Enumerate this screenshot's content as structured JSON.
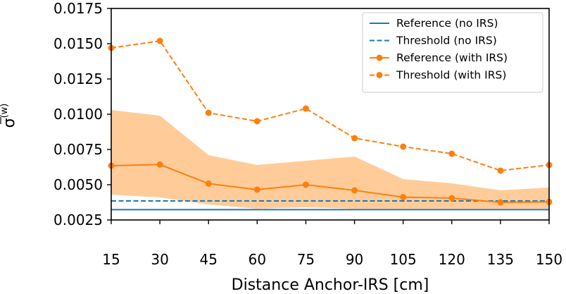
{
  "chart_data": {
    "type": "line",
    "title": "",
    "xlabel": "Distance Anchor-IRS [cm]",
    "ylabel": "σ̄(w)",
    "ylabel_main": "σ",
    "ylabel_sup": "(w)",
    "xlim": [
      15,
      150
    ],
    "ylim": [
      0.0025,
      0.0175
    ],
    "x": [
      15,
      30,
      45,
      60,
      75,
      90,
      105,
      120,
      135,
      150
    ],
    "x_tick_labels": [
      "15",
      "30",
      "45",
      "60",
      "75",
      "90",
      "105",
      "120",
      "135",
      "150"
    ],
    "y_ticks": [
      0.0025,
      0.005,
      0.0075,
      0.01,
      0.0125,
      0.015,
      0.0175
    ],
    "y_tick_labels": [
      "0.0025",
      "0.0050",
      "0.0075",
      "0.0100",
      "0.0125",
      "0.0150",
      "0.0175"
    ],
    "legend_position": "top-right",
    "series": [
      {
        "name": "Reference (no IRS)",
        "color": "#1f77b4",
        "dash": "solid",
        "marker": false,
        "values": [
          0.00323,
          0.00323,
          0.00323,
          0.00323,
          0.00323,
          0.00323,
          0.00323,
          0.00323,
          0.00323,
          0.00323
        ]
      },
      {
        "name": "Threshold (no IRS)",
        "color": "#1f77b4",
        "dash": "dashed",
        "marker": false,
        "values": [
          0.00385,
          0.00385,
          0.00385,
          0.00385,
          0.00385,
          0.00385,
          0.00385,
          0.00385,
          0.00385,
          0.00385
        ]
      },
      {
        "name": "Reference (with IRS)",
        "color": "#ff7f0e",
        "dash": "solid",
        "marker": true,
        "values": [
          0.00635,
          0.00643,
          0.00508,
          0.00465,
          0.005,
          0.0046,
          0.00412,
          0.00405,
          0.00375,
          0.00378
        ]
      },
      {
        "name": "Threshold (with IRS)",
        "color": "#ff7f0e",
        "dash": "dashed",
        "marker": true,
        "values": [
          0.0147,
          0.0152,
          0.0101,
          0.0095,
          0.0104,
          0.0083,
          0.0077,
          0.0072,
          0.006,
          0.0064
        ]
      }
    ],
    "band": {
      "color": "#ffcc99",
      "upper": [
        0.0103,
        0.0099,
        0.0071,
        0.0064,
        0.0067,
        0.007,
        0.0054,
        0.0051,
        0.0046,
        0.0048
      ],
      "lower": [
        0.0043,
        0.0041,
        0.0036,
        0.0033,
        0.0034,
        0.0033,
        0.0033,
        0.0033,
        0.0033,
        0.0033
      ]
    }
  }
}
